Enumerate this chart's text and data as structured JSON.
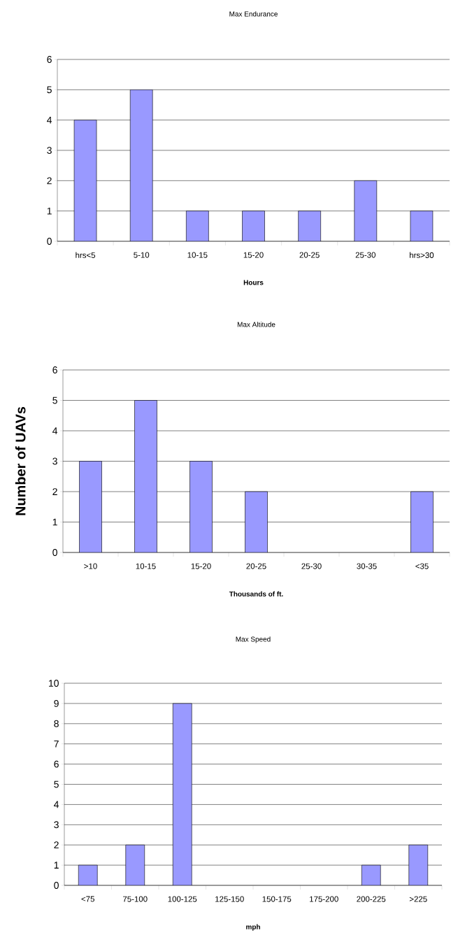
{
  "chart_data": [
    {
      "type": "bar",
      "title": "Max Endurance",
      "xlabel": "Hours",
      "categories": [
        "hrs<5",
        "5-10",
        "10-15",
        "15-20",
        "20-25",
        "25-30",
        "hrs>30"
      ],
      "values": [
        4,
        5,
        1,
        1,
        1,
        2,
        1
      ],
      "color": "#9999ff",
      "ylim": [
        0,
        6
      ],
      "yticks": [
        0,
        1,
        2,
        3,
        4,
        5,
        6
      ],
      "grid": "y"
    },
    {
      "type": "bar",
      "title": "Max Altitude",
      "xlabel": "Thousands of ft.",
      "ylabel": "Number of UAVs",
      "categories": [
        ">10",
        "10-15",
        "15-20",
        "20-25",
        "25-30",
        "30-35",
        "<35"
      ],
      "values": [
        3,
        5,
        3,
        2,
        0,
        0,
        2
      ],
      "color": "#9999ff",
      "ylim": [
        0,
        6
      ],
      "yticks": [
        0,
        1,
        2,
        3,
        4,
        5,
        6
      ],
      "grid": "y"
    },
    {
      "type": "bar",
      "title": "Max Speed",
      "xlabel": "mph",
      "categories": [
        "<75",
        "75-100",
        "100-125",
        "125-150",
        "150-175",
        "175-200",
        "200-225",
        ">225"
      ],
      "values": [
        1,
        2,
        9,
        0,
        0,
        0,
        1,
        2
      ],
      "color": "#9999ff",
      "ylim": [
        0,
        10
      ],
      "yticks": [
        0,
        1,
        2,
        3,
        4,
        5,
        6,
        7,
        8,
        9,
        10
      ],
      "grid": "y"
    }
  ]
}
